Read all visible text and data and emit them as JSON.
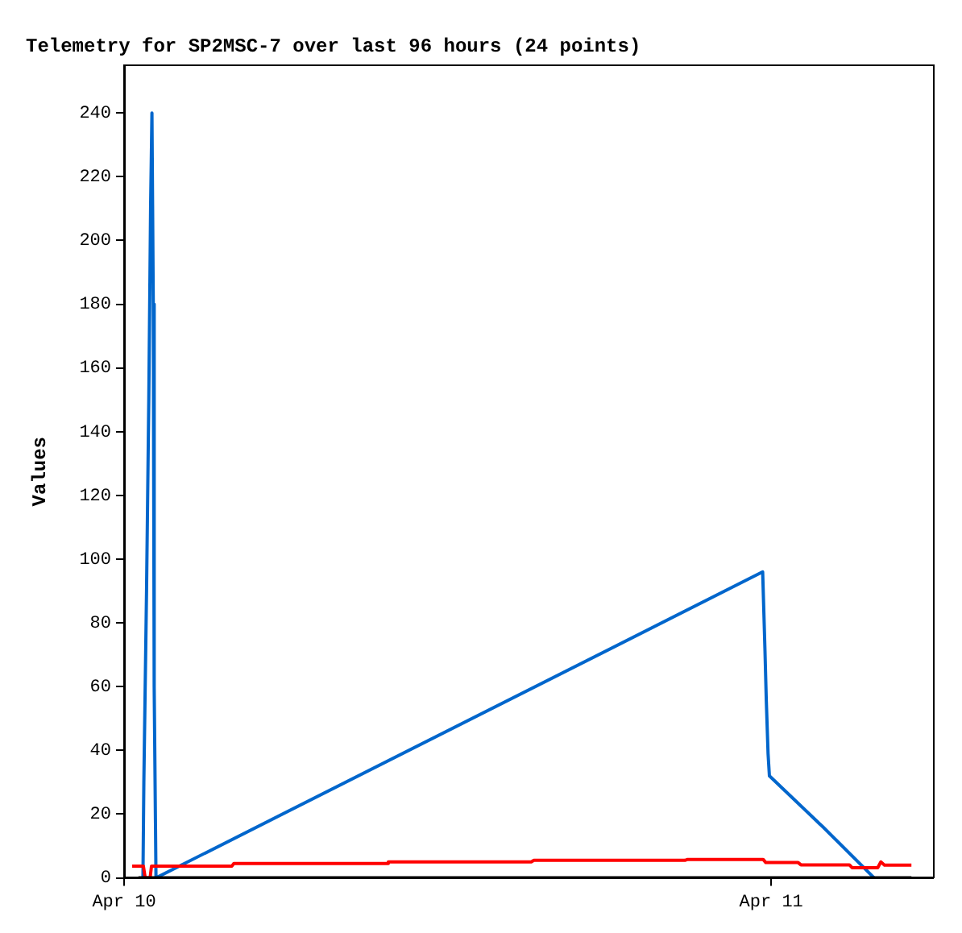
{
  "chart_data": {
    "type": "line",
    "title": "Telemetry for SP2MSC-7 over last 96 hours (24 points)",
    "ylabel": "Values",
    "xlim": [
      "--04-10T00:00",
      "--04-11T06:00"
    ],
    "xticks": [
      {
        "value": "--04-10",
        "label": "Apr 10"
      },
      {
        "value": "--04-11",
        "label": "Apr 11"
      }
    ],
    "ylim": [
      0,
      255
    ],
    "yticks": [
      0,
      20,
      40,
      60,
      80,
      100,
      120,
      140,
      160,
      180,
      200,
      220,
      240
    ],
    "grid": false,
    "legend": false,
    "marker": "none",
    "line_style": "solid",
    "series": [
      {
        "color": "#000000",
        "x": [
          "--04-10T00:32",
          "--04-11T05:12"
        ],
        "values": [
          0,
          0
        ]
      },
      {
        "color": "#ff0000",
        "x": [
          "--04-10T00:18",
          "--04-10T00:43",
          "--04-10T00:47",
          "--04-10T00:58",
          "--04-10T01:01",
          "--04-10T04:00",
          "--04-10T04:04",
          "--04-10T09:45",
          "--04-10T09:48",
          "--04-10T15:06",
          "--04-10T15:12",
          "--04-10T20:48",
          "--04-10T20:54",
          "--04-10T23:42",
          "--04-10T23:48",
          "--04-11T01:00",
          "--04-11T01:06",
          "--04-11T02:54",
          "--04-11T03:00",
          "--04-11T03:57",
          "--04-11T04:04",
          "--04-11T04:12",
          "--04-11T05:12"
        ],
        "values": [
          3.7,
          3.7,
          0,
          0,
          3.7,
          3.7,
          4.5,
          4.5,
          5,
          5,
          5.5,
          5.5,
          5.8,
          5.8,
          4.8,
          4.8,
          4.1,
          4.1,
          3.2,
          3.2,
          5,
          4,
          4
        ]
      },
      {
        "color": "#0066cc",
        "x": [
          "--04-10T00:42",
          "--04-10T00:44",
          "--04-10T00:50",
          "--04-10T00:55",
          "--04-10T00:59",
          "--04-10T01:02",
          "--04-10T01:05",
          "--04-10T01:07",
          "--04-10T01:11",
          "--04-10T23:41",
          "--04-10T23:46",
          "--04-10T23:49",
          "--04-10T23:53",
          "--04-10T23:56",
          "--04-11T01:55",
          "--04-11T03:49"
        ],
        "values": [
          0,
          30,
          90,
          150,
          210,
          240,
          180,
          60,
          0,
          96,
          72,
          56,
          39,
          32,
          16,
          0
        ]
      }
    ]
  }
}
